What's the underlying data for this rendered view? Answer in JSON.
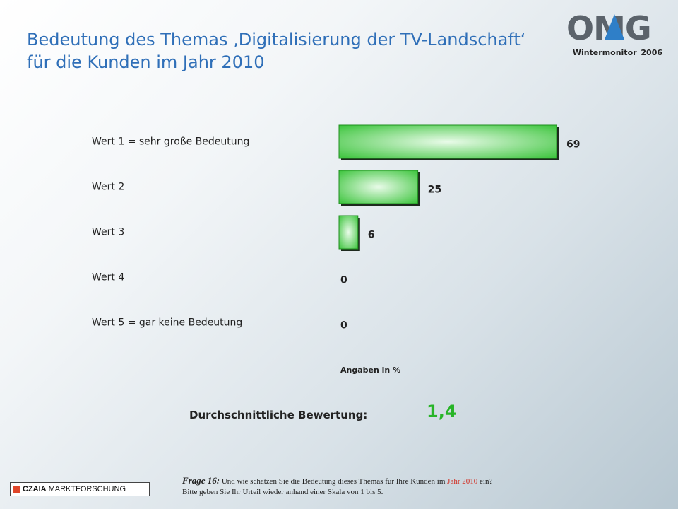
{
  "header": {
    "title_line1": "Bedeutung des Themas ‚Digitalisierung der TV-Landschaft‘",
    "title_line2": "für die Kunden im Jahr 2010",
    "logo_text": "OMG",
    "subtitle": "Wintermonitor 2006"
  },
  "chart_data": {
    "type": "bar",
    "orientation": "horizontal",
    "categories": [
      "Wert 1 = sehr große Bedeutung",
      "Wert 2",
      "Wert 3",
      "Wert 4",
      "Wert 5 = gar keine Bedeutung"
    ],
    "values": [
      69,
      25,
      6,
      0,
      0
    ],
    "value_labels": [
      "69",
      "25",
      "6",
      "0",
      "0"
    ],
    "unit_note": "Angaben in %",
    "xlim": [
      0,
      69
    ],
    "grid": false,
    "legend": "none",
    "bar_color": "#2fc02f",
    "bar_highlight": "#e9fbe9"
  },
  "summary": {
    "label": "Durchschnittliche Bewertung:",
    "value": "1,4",
    "value_color": "#27b427"
  },
  "footer": {
    "brand_bold": "CZAIA",
    "brand_rest": "MARKTFORSCHUNG",
    "question_label": "Frage 16:",
    "question_part1": "Und wie schätzen Sie die Bedeutung dieses Themas für Ihre Kunden im",
    "question_highlight": "Jahr 2010",
    "question_part2": "ein?",
    "question_line2": "Bitte geben Sie Ihr Urteil wieder anhand einer Skala von 1 bis 5."
  }
}
